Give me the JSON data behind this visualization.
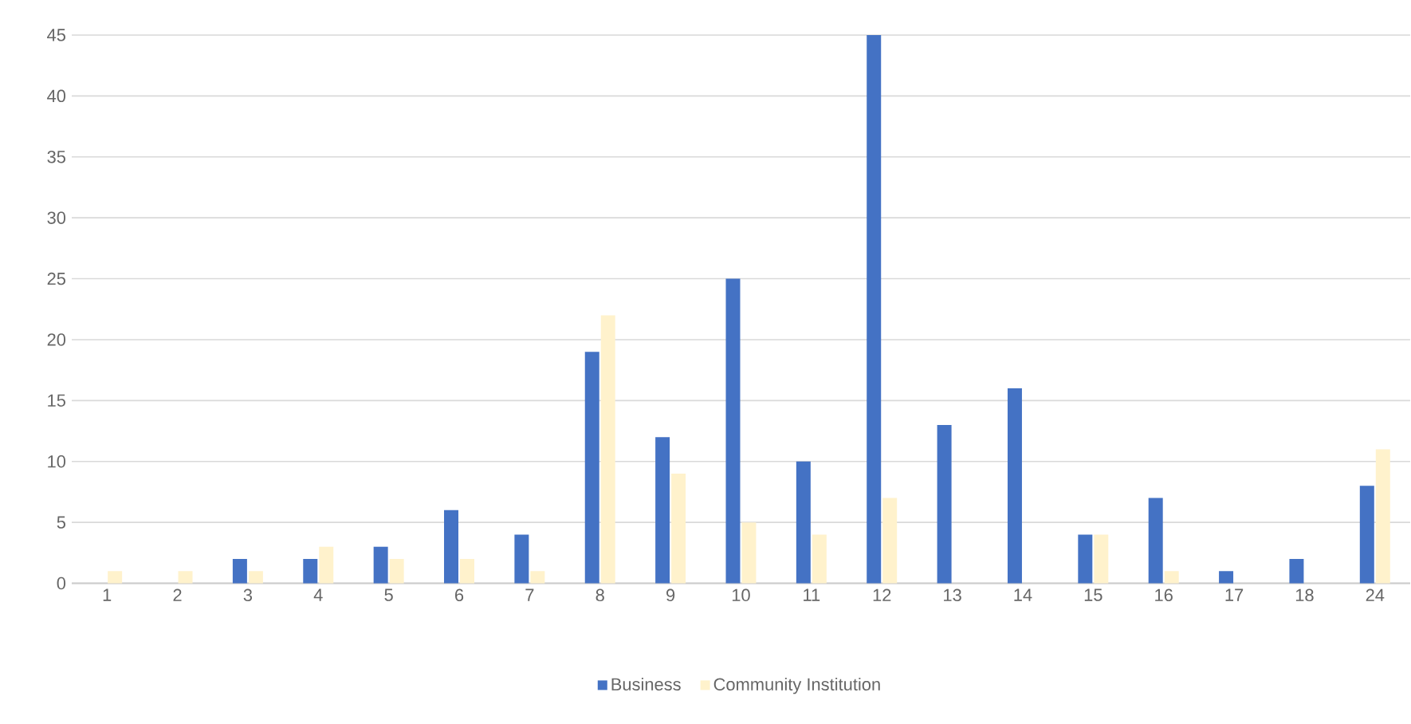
{
  "chart_data": {
    "type": "bar",
    "categories": [
      "1",
      "2",
      "3",
      "4",
      "5",
      "6",
      "7",
      "8",
      "9",
      "10",
      "11",
      "12",
      "13",
      "14",
      "15",
      "16",
      "17",
      "18",
      "24"
    ],
    "series": [
      {
        "name": "Business",
        "color": "#4472c4",
        "values": [
          0,
          0,
          2,
          2,
          3,
          6,
          4,
          19,
          12,
          25,
          10,
          45,
          13,
          16,
          4,
          7,
          1,
          2,
          8
        ]
      },
      {
        "name": "Community Institution",
        "color": "#fff2cc",
        "values": [
          1,
          1,
          1,
          3,
          2,
          2,
          1,
          22,
          9,
          5,
          4,
          7,
          0,
          0,
          4,
          1,
          0,
          0,
          11
        ]
      }
    ],
    "ylim": [
      0,
      45
    ],
    "yticks": [
      0,
      5,
      10,
      15,
      20,
      25,
      30,
      35,
      40,
      45
    ],
    "grid": "y",
    "legend": "bottom"
  }
}
